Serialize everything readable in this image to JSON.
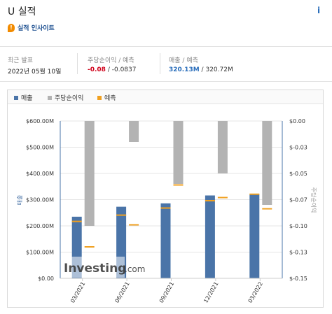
{
  "header": {
    "title": "U 실적",
    "info_icon_text": "i",
    "insight_icon": "lightbulb-icon",
    "insight_link": "실적 인사이트"
  },
  "stats": {
    "last_release": {
      "label": "최근 발표",
      "value": "2022년 05월 10일"
    },
    "eps": {
      "label": "주당순이익 / 예측",
      "actual": "-0.08",
      "separator": " /",
      "forecast": "-0.0837"
    },
    "revenue": {
      "label": "매출 / 예측",
      "actual": "320.13M",
      "separator": " /",
      "forecast": "320.72M"
    }
  },
  "legend": [
    {
      "label": "매출",
      "color": "#4a74a8"
    },
    {
      "label": "주당순이익",
      "color": "#b3b3b3"
    },
    {
      "label": "예측",
      "color": "#f0a020"
    }
  ],
  "watermark": {
    "text_main": "Investing",
    "text_suffix": ".com"
  },
  "colors": {
    "revenue": "#4a74a8",
    "eps": "#b3b3b3",
    "forecast": "#f0a020",
    "axis": "#4a74a8"
  },
  "chart_data": {
    "type": "bar",
    "categories": [
      "03/2021",
      "06/2021",
      "09/2021",
      "12/2021",
      "03/2022"
    ],
    "y_left_label": "매출",
    "y_right_label": "주당순이익",
    "y_left_ticks": [
      "$600.00M",
      "$500.00M",
      "$400.00M",
      "$300.00M",
      "$200.00M",
      "$100.00M",
      "$0.00"
    ],
    "y_left_tick_values": [
      600,
      500,
      400,
      300,
      200,
      100,
      0
    ],
    "y_left_range": [
      0,
      600
    ],
    "y_right_ticks": [
      "$0.00",
      "$-0.03",
      "$-0.05",
      "$-0.07",
      "$-0.10",
      "$-0.13",
      "$-0.15"
    ],
    "y_right_tick_values": [
      0,
      -0.025,
      -0.05,
      -0.075,
      -0.1,
      -0.125,
      -0.15
    ],
    "y_right_range": [
      -0.15,
      0
    ],
    "series": [
      {
        "name": "매출",
        "axis": "left",
        "values": [
          235,
          273,
          286,
          316,
          320.13
        ]
      },
      {
        "name": "매출 예측",
        "axis": "left",
        "values": [
          217,
          241,
          268,
          296,
          320.72
        ]
      },
      {
        "name": "주당순이익",
        "axis": "right",
        "values": [
          -0.1,
          -0.02,
          -0.06,
          -0.05,
          -0.08
        ]
      },
      {
        "name": "주당순이익 예측",
        "axis": "right",
        "values": [
          -0.12,
          -0.099,
          -0.061,
          -0.073,
          -0.0837
        ]
      }
    ]
  }
}
